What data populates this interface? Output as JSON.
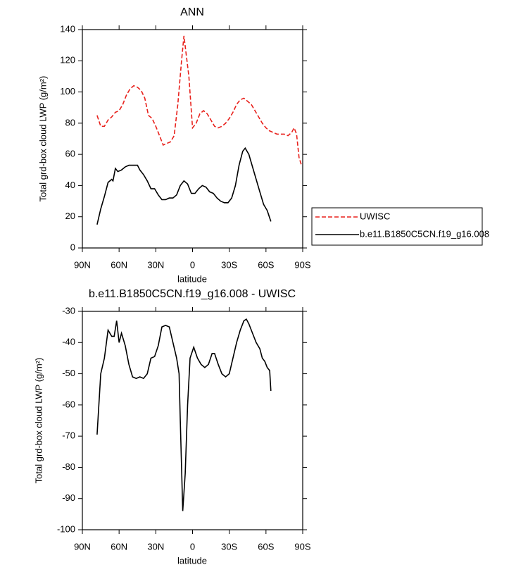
{
  "chart_data": [
    {
      "type": "line",
      "title": "ANN",
      "xlabel": "latitude",
      "ylabel": "Total grd-box cloud LWP (g/m²)",
      "xlim": [
        90,
        -90
      ],
      "xticks": [
        {
          "value": 90,
          "label": "90N"
        },
        {
          "value": 60,
          "label": "60N"
        },
        {
          "value": 30,
          "label": "30N"
        },
        0,
        {
          "value": -30,
          "label": "30S"
        },
        {
          "value": -60,
          "label": "60S"
        },
        {
          "value": -90,
          "label": "90S"
        }
      ],
      "ylim": [
        0,
        140
      ],
      "yticks": [
        0,
        20,
        40,
        60,
        80,
        100,
        120,
        140
      ],
      "legend": "right",
      "series": [
        {
          "name": "UWISC",
          "color": "#e8211c",
          "line_style": "dashed",
          "x": [
            78,
            75,
            72,
            69,
            66,
            63,
            60,
            57,
            54,
            51,
            48,
            45,
            42,
            39,
            36,
            33,
            30,
            27,
            24,
            21,
            18,
            15,
            12,
            9,
            7,
            3,
            0,
            -3,
            -6,
            -9,
            -12,
            -15,
            -18,
            -21,
            -24,
            -27,
            -30,
            -33,
            -36,
            -39,
            -42,
            -45,
            -48,
            -51,
            -54,
            -57,
            -60,
            -63,
            -66,
            -69,
            -72,
            -75,
            -78,
            -81,
            -83,
            -85,
            -87,
            -89
          ],
          "values": [
            85,
            78,
            78,
            82,
            84,
            87,
            88,
            92,
            98,
            102,
            104,
            103,
            101,
            96,
            85,
            83,
            78,
            72,
            66,
            67,
            68,
            72,
            92,
            120,
            136,
            110,
            77,
            80,
            86,
            88,
            86,
            82,
            78,
            77,
            78,
            80,
            83,
            87,
            92,
            95,
            96,
            94,
            92,
            88,
            84,
            80,
            77,
            75,
            74,
            73,
            73,
            73,
            72,
            74,
            77,
            73,
            58,
            53
          ]
        },
        {
          "name": "b.e11.B1850C5CN.f19_g16.008",
          "color": "#000000",
          "line_style": "solid",
          "x": [
            78,
            75,
            72,
            69,
            66,
            65,
            63,
            61,
            58,
            55,
            52,
            48,
            45,
            43,
            40,
            37,
            34,
            31,
            28,
            25,
            22,
            19,
            16,
            13,
            10,
            7,
            4,
            1,
            -2,
            -5,
            -8,
            -11,
            -14,
            -17,
            -20,
            -23,
            -26,
            -29,
            -32,
            -35,
            -38,
            -41,
            -43,
            -46,
            -49,
            -52,
            -55,
            -58,
            -61,
            -64
          ],
          "values": [
            15,
            25,
            33,
            42,
            44,
            43,
            51,
            49,
            50,
            52,
            53,
            53,
            53,
            50,
            47,
            43,
            38,
            38,
            34,
            31,
            31,
            32,
            32,
            34,
            40,
            43,
            41,
            35,
            35,
            38,
            40,
            39,
            36,
            35,
            32,
            30,
            29,
            29,
            32,
            40,
            53,
            62,
            64,
            60,
            52,
            44,
            36,
            28,
            24,
            17
          ]
        }
      ]
    },
    {
      "type": "line",
      "title": "b.e11.B1850C5CN.f19_g16.008 - UWISC",
      "xlabel": "latitude",
      "ylabel": "Total grd-box cloud LWP (g/m²)",
      "xlim": [
        90,
        -90
      ],
      "xticks": [
        {
          "value": 90,
          "label": "90N"
        },
        {
          "value": 60,
          "label": "60N"
        },
        {
          "value": 30,
          "label": "30N"
        },
        0,
        {
          "value": -30,
          "label": "30S"
        },
        {
          "value": -60,
          "label": "60S"
        },
        {
          "value": -90,
          "label": "90S"
        }
      ],
      "ylim": [
        -100,
        -30
      ],
      "yticks": [
        -100,
        -90,
        -80,
        -70,
        -60,
        -50,
        -40,
        -30
      ],
      "color": "#000000",
      "x": [
        78,
        75,
        72,
        69,
        66,
        64,
        62,
        60,
        58,
        55,
        52,
        49,
        46,
        43,
        40,
        37,
        34,
        31,
        28,
        25,
        22,
        19,
        16,
        13,
        11,
        10,
        8,
        6,
        4,
        2,
        -1,
        -4,
        -7,
        -10,
        -13,
        -16,
        -18,
        -21,
        -24,
        -27,
        -30,
        -33,
        -36,
        -39,
        -42,
        -44,
        -46,
        -49,
        -52,
        -55,
        -57,
        -59,
        -61,
        -63,
        -64
      ],
      "values": [
        -69.5,
        -50,
        -45,
        -36,
        -38,
        -38,
        -33,
        -40,
        -37,
        -41,
        -47,
        -51,
        -51.5,
        -51,
        -51.5,
        -50,
        -45,
        -44.5,
        -41,
        -35,
        -34.5,
        -35,
        -40,
        -45,
        -50,
        -65,
        -94,
        -82,
        -60,
        -45,
        -41.5,
        -45,
        -47,
        -48,
        -47,
        -43.5,
        -43.5,
        -47,
        -50,
        -51,
        -50,
        -45,
        -40,
        -36,
        -33,
        -32.5,
        -34,
        -37,
        -40,
        -42,
        -45,
        -46,
        -48,
        -49,
        -55.5
      ]
    }
  ]
}
